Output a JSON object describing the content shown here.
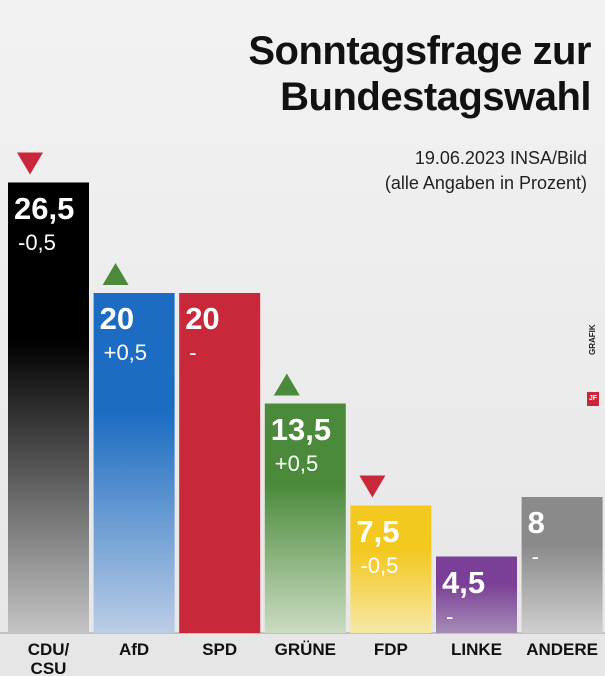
{
  "chart_data": {
    "type": "bar",
    "title": "Sonntagsfrage zur\nBundestagswahl",
    "subtitle": [
      "19.06.2023 INSA/Bild",
      "(alle Angaben in Prozent)"
    ],
    "categories": [
      "CDU/\nCSU",
      "AfD",
      "SPD",
      "GRÜNE",
      "FDP",
      "LINKE",
      "ANDERE"
    ],
    "values": [
      26.5,
      20,
      20,
      13.5,
      7.5,
      4.5,
      8
    ],
    "value_labels": [
      "26,5",
      "20",
      "20",
      "13,5",
      "7,5",
      "4,5",
      "8"
    ],
    "changes": [
      -0.5,
      0.5,
      0,
      0.5,
      -0.5,
      0,
      0
    ],
    "change_labels": [
      "-0,5",
      "+0,5",
      "-",
      "+0,5",
      "-0,5",
      "-",
      "-"
    ],
    "colors": [
      "#000000",
      "#1b6cc2",
      "#c8283a",
      "#4b8a3b",
      "#f3c81f",
      "#7a3f96",
      "#8a8a8a"
    ],
    "colors_bottom": [
      "#c4c4c4",
      "#bccde6",
      "#c8283a",
      "#cbdcc3",
      "#f6e8a6",
      "#a58cb6",
      "#cfcfcf"
    ],
    "source_tag": "JF",
    "source_tag_text": "GRAFIK"
  }
}
